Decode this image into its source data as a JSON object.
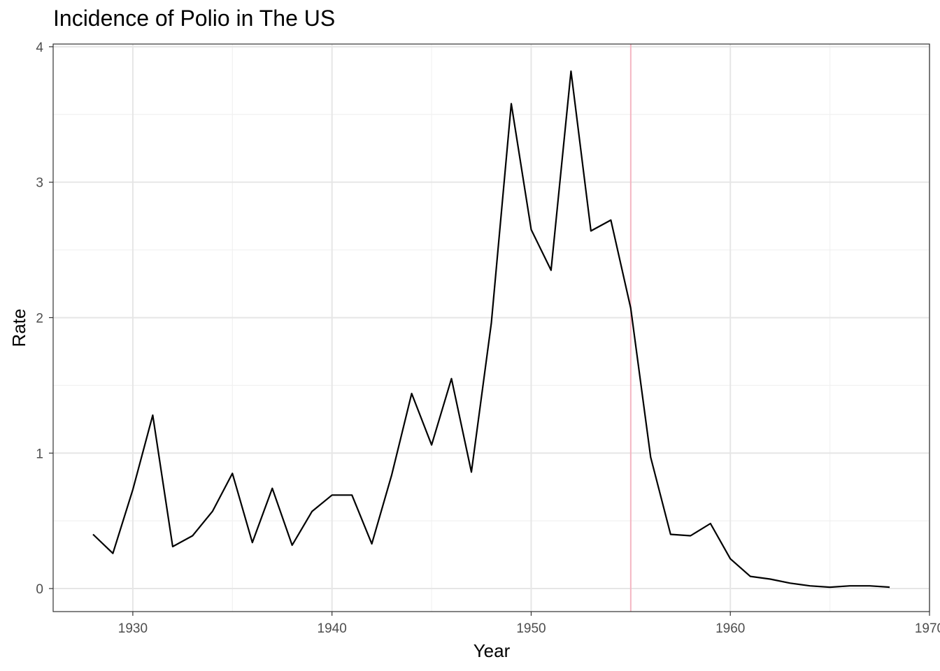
{
  "colors": {
    "series_line": "#000000",
    "reference_line": "#f4b6c2",
    "grid_major": "#e6e6e6",
    "grid_minor": "#f1f1f1",
    "panel_border": "#333333",
    "background": "#ffffff"
  },
  "chart_data": {
    "type": "line",
    "title": "Incidence of Polio in The US",
    "xlabel": "Year",
    "ylabel": "Rate",
    "xlim": [
      1926,
      1970
    ],
    "ylim": [
      -0.17,
      4.02
    ],
    "x_ticks": [
      1930,
      1940,
      1950,
      1960,
      1970
    ],
    "x_tick_labels": [
      "1930",
      "1940",
      "1950",
      "1960",
      "1970"
    ],
    "y_ticks": [
      0,
      1,
      2,
      3,
      4
    ],
    "y_tick_labels": [
      "0",
      "1",
      "2",
      "3",
      "4"
    ],
    "grid": true,
    "legend": "none",
    "reference_vline": 1955,
    "series": [
      {
        "x": [
          1928,
          1929,
          1930,
          1931,
          1932,
          1933,
          1934,
          1935,
          1936,
          1937,
          1938,
          1939,
          1940,
          1941,
          1942,
          1943,
          1944,
          1945,
          1946,
          1947,
          1948,
          1949,
          1950,
          1951,
          1952,
          1953,
          1954,
          1955,
          1956,
          1957,
          1958,
          1959,
          1960,
          1961,
          1962,
          1963,
          1964,
          1965,
          1966,
          1967,
          1968
        ],
        "y": [
          0.4,
          0.26,
          0.73,
          1.28,
          0.31,
          0.39,
          0.57,
          0.85,
          0.34,
          0.74,
          0.32,
          0.57,
          0.69,
          0.69,
          0.33,
          0.84,
          1.44,
          1.06,
          1.55,
          0.86,
          1.96,
          3.58,
          2.65,
          2.35,
          3.82,
          2.64,
          2.72,
          2.07,
          0.97,
          0.4,
          0.39,
          0.48,
          0.22,
          0.09,
          0.07,
          0.04,
          0.02,
          0.01,
          0.02,
          0.02,
          0.01
        ]
      }
    ]
  }
}
